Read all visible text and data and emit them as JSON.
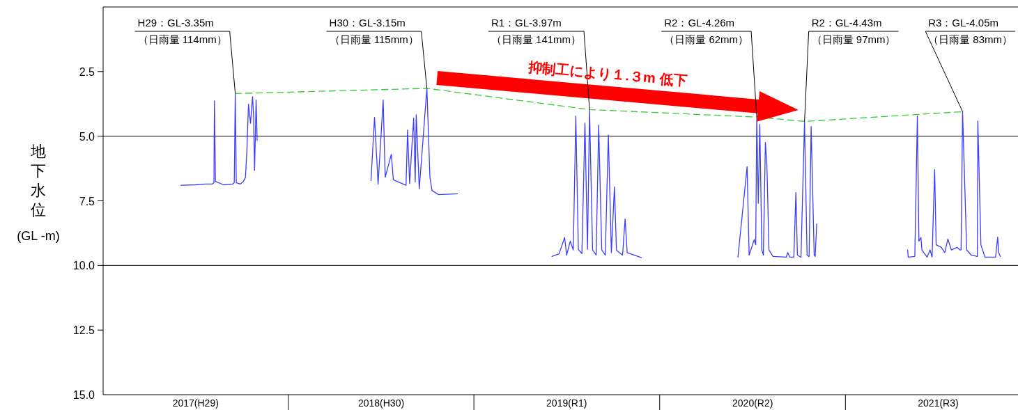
{
  "chart_data": {
    "type": "line",
    "ylabel": "地下水位(GL -m)",
    "xlim": [
      "2017-01-01",
      "2021-12-06"
    ],
    "xticks": [
      {
        "value": "2017-07-02",
        "label": "2017(H29)"
      },
      {
        "value": "2018-07-02",
        "label": "2018(H30)"
      },
      {
        "value": "2019-07-02",
        "label": "2019(R1)"
      },
      {
        "value": "2020-07-02",
        "label": "2020(R2)"
      },
      {
        "value": "2021-07-02",
        "label": "2021(R3)"
      }
    ],
    "ylim": [
      15,
      0
    ],
    "yticks": [
      2.5,
      {
        "value": 5,
        "label": "5.0"
      },
      7.5,
      {
        "value": 10,
        "label": "10.0"
      },
      12.5,
      {
        "value": 15,
        "label": "15.0"
      }
    ],
    "ref_lines": [
      {
        "axis": "y",
        "value": 5,
        "color": "#000000"
      },
      {
        "axis": "y",
        "value": 10,
        "color": "#000000"
      }
    ],
    "series": [
      {
        "color": "#3c3cff",
        "x": [
          "2017-06-03",
          "2017-07-02",
          "2017-07-21",
          "2017-08-04",
          "2017-08-07",
          "2017-08-08",
          "2017-08-10",
          "2017-08-26",
          "2017-09-13",
          "2017-09-16",
          "2017-09-18",
          "2017-09-20",
          "2017-09-28",
          "2017-10-04",
          "2017-10-08",
          "2017-10-11",
          "2017-10-14",
          "2017-10-18",
          "2017-10-22",
          "2017-10-24",
          "2017-10-26",
          "2017-10-29",
          "2017-10-31"
        ],
        "values": [
          6.9,
          6.88,
          6.85,
          6.85,
          6.8,
          3.63,
          6.75,
          6.88,
          6.85,
          6.8,
          3.35,
          6.8,
          6.85,
          6.75,
          6.6,
          5.5,
          3.76,
          4.5,
          3.47,
          4.2,
          6.32,
          3.6,
          5.16
        ]
      },
      {
        "color": "#3c3cff",
        "x": [
          "2018-06-12",
          "2018-06-19",
          "2018-06-26",
          "2018-07-06",
          "2018-07-10",
          "2018-07-22",
          "2018-07-26",
          "2018-08-20",
          "2018-08-23",
          "2018-08-27",
          "2018-09-04",
          "2018-09-07",
          "2018-09-09",
          "2018-09-15",
          "2018-09-30",
          "2018-10-06",
          "2018-10-10",
          "2018-10-23",
          "2018-11-29"
        ],
        "values": [
          6.72,
          4.27,
          6.85,
          3.6,
          6.59,
          5.7,
          6.69,
          6.9,
          4.76,
          6.83,
          4.3,
          6.77,
          4.17,
          7.04,
          3.15,
          6.59,
          7.1,
          7.26,
          7.23
        ]
      },
      {
        "color": "#3c3cff",
        "x": [
          "2019-06-03",
          "2019-06-17",
          "2019-06-28",
          "2019-07-02",
          "2019-07-09",
          "2019-07-15",
          "2019-07-20",
          "2019-07-25",
          "2019-08-01",
          "2019-08-07",
          "2019-08-12",
          "2019-08-16",
          "2019-08-22",
          "2019-08-29",
          "2019-09-03",
          "2019-09-09",
          "2019-09-16",
          "2019-09-22",
          "2019-09-28",
          "2019-10-04",
          "2019-10-08",
          "2019-10-20",
          "2019-10-25",
          "2019-10-29",
          "2019-11-26"
        ],
        "values": [
          9.65,
          9.55,
          8.92,
          9.6,
          9.06,
          9.4,
          4.22,
          9.38,
          9.54,
          4.49,
          9.38,
          3.97,
          9.4,
          9.6,
          4.57,
          9.4,
          9.6,
          4.95,
          9.5,
          6.96,
          9.41,
          9.6,
          8.2,
          9.5,
          9.7
        ]
      },
      {
        "color": "#3c3cff",
        "x": [
          "2020-06-03",
          "2020-06-21",
          "2020-06-25",
          "2020-07-05",
          "2020-07-08",
          "2020-07-10",
          "2020-07-13",
          "2020-07-16",
          "2020-07-20",
          "2020-07-23",
          "2020-07-27",
          "2020-07-30",
          "2020-08-03",
          "2020-08-11",
          "2020-09-06",
          "2020-09-09",
          "2020-09-13",
          "2020-09-21",
          "2020-09-25",
          "2020-09-28",
          "2020-10-05",
          "2020-10-12",
          "2020-10-17",
          "2020-10-21",
          "2020-10-25",
          "2020-10-31",
          "2020-11-02",
          "2020-11-05"
        ],
        "values": [
          9.68,
          6.18,
          9.6,
          9.0,
          9.2,
          4.26,
          7.6,
          4.54,
          9.4,
          9.6,
          5.24,
          6.15,
          9.4,
          9.65,
          9.68,
          9.5,
          9.68,
          9.68,
          7.18,
          9.6,
          9.68,
          4.43,
          9.6,
          9.66,
          4.62,
          9.6,
          9.65,
          8.39
        ]
      },
      {
        "color": "#3c3cff",
        "x": [
          "2021-05-03",
          "2021-05-04",
          "2021-05-17",
          "2021-05-22",
          "2021-05-25",
          "2021-05-29",
          "2021-05-31",
          "2021-06-10",
          "2021-06-16",
          "2021-06-20",
          "2021-06-25",
          "2021-06-28",
          "2021-07-08",
          "2021-07-15",
          "2021-07-21",
          "2021-07-28",
          "2021-08-08",
          "2021-08-14",
          "2021-08-16",
          "2021-08-19",
          "2021-08-27",
          "2021-09-05",
          "2021-09-17",
          "2021-09-18",
          "2021-09-24",
          "2021-10-02",
          "2021-10-23",
          "2021-10-27",
          "2021-10-29",
          "2021-11-01"
        ],
        "values": [
          9.4,
          9.68,
          9.65,
          4.22,
          9.06,
          8.92,
          9.4,
          9.68,
          9.4,
          9.68,
          6.29,
          9.2,
          9.3,
          9.5,
          8.98,
          9.4,
          9.3,
          9.4,
          9.4,
          4.05,
          9.4,
          9.6,
          9.65,
          4.41,
          9.2,
          9.68,
          9.68,
          8.9,
          9.5,
          9.65
        ]
      },
      {
        "color": "#33cc33",
        "line_style": "dashed",
        "x": [
          "2017-09-18",
          "2018-09-30",
          "2019-08-16",
          "2020-07-10",
          "2020-10-12",
          "2021-08-19"
        ],
        "values": [
          3.35,
          3.15,
          3.97,
          4.26,
          4.43,
          4.05
        ]
      }
    ],
    "annotations": [
      {
        "text": "H29：GL-3.35m\n（日雨量 114mm）",
        "x": "2017-09-18",
        "y": 3.35
      },
      {
        "text": "H30：GL-3.15m\n（日雨量 115mm）",
        "x": "2018-09-30",
        "y": 3.15
      },
      {
        "text": "R1：GL-3.97m\n（日雨量 141mm）",
        "x": "2019-08-16",
        "y": 3.97
      },
      {
        "text": "R2：GL-4.26m\n（日雨量 62mm）",
        "x": "2020-07-10",
        "y": 4.26
      },
      {
        "text": "R2：GL-4.43m\n（日雨量 97mm）",
        "x": "2020-10-12",
        "y": 4.43
      },
      {
        "text": "R3：GL-4.05m\n（日雨量 83mm）",
        "x": "2021-08-19",
        "y": 4.05
      },
      "抑制工により１.３m 低下"
    ]
  }
}
